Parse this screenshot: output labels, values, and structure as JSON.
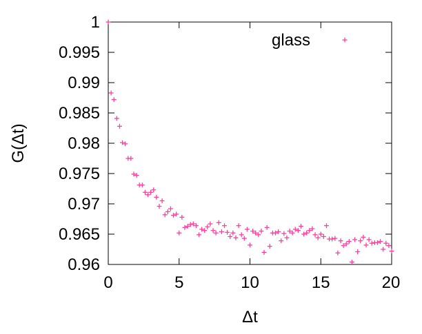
{
  "chart_data": {
    "type": "scatter",
    "title": "",
    "xlabel": "Δt",
    "ylabel": "G(Δt)",
    "xlim": [
      0,
      20
    ],
    "ylim": [
      0.96,
      1.0
    ],
    "x_ticks": [
      {
        "value": 0,
        "label": "0"
      },
      {
        "value": 5,
        "label": "5"
      },
      {
        "value": 10,
        "label": "10"
      },
      {
        "value": 15,
        "label": "15"
      },
      {
        "value": 20,
        "label": "20"
      }
    ],
    "y_ticks": [
      {
        "value": 0.96,
        "label": "0.96"
      },
      {
        "value": 0.965,
        "label": "0.965"
      },
      {
        "value": 0.97,
        "label": "0.97"
      },
      {
        "value": 0.975,
        "label": "0.975"
      },
      {
        "value": 0.98,
        "label": "0.98"
      },
      {
        "value": 0.985,
        "label": "0.985"
      },
      {
        "value": 0.99,
        "label": "0.99"
      },
      {
        "value": 0.995,
        "label": "0.995"
      },
      {
        "value": 1.0,
        "label": "1"
      }
    ],
    "grid": false,
    "legend": {
      "position": "top-right"
    },
    "series": [
      {
        "name": "glass",
        "color": "#ff3d9a",
        "marker": "plus",
        "x": [
          0.0,
          0.2,
          0.4,
          0.6,
          0.8,
          1.0,
          1.2,
          1.4,
          1.6,
          1.8,
          2.0,
          2.2,
          2.4,
          2.6,
          2.8,
          3.0,
          3.2,
          3.4,
          3.6,
          3.8,
          4.0,
          4.2,
          4.4,
          4.6,
          4.8,
          5.0,
          5.2,
          5.4,
          5.6,
          5.8,
          6.0,
          6.2,
          6.4,
          6.6,
          6.8,
          7.0,
          7.2,
          7.4,
          7.6,
          7.8,
          8.0,
          8.2,
          8.4,
          8.6,
          8.8,
          9.0,
          9.2,
          9.4,
          9.6,
          9.8,
          10.0,
          10.2,
          10.4,
          10.6,
          10.8,
          11.0,
          11.2,
          11.4,
          11.6,
          11.8,
          12.0,
          12.2,
          12.4,
          12.6,
          12.8,
          13.0,
          13.2,
          13.4,
          13.6,
          13.8,
          14.0,
          14.2,
          14.4,
          14.6,
          14.8,
          15.0,
          15.2,
          15.4,
          15.6,
          15.8,
          16.0,
          16.2,
          16.4,
          16.6,
          16.8,
          17.0,
          17.2,
          17.4,
          17.6,
          17.8,
          18.0,
          18.2,
          18.4,
          18.6,
          18.8,
          19.0,
          19.2,
          19.4,
          19.6,
          19.8,
          20.0
        ],
        "y": [
          1.0,
          0.9883,
          0.9872,
          0.9841,
          0.9828,
          0.9801,
          0.9799,
          0.9775,
          0.9775,
          0.9749,
          0.9747,
          0.9731,
          0.9731,
          0.9719,
          0.9715,
          0.9719,
          0.9723,
          0.9711,
          0.9696,
          0.9705,
          0.9682,
          0.9687,
          0.9692,
          0.9681,
          0.9683,
          0.9652,
          0.9678,
          0.9661,
          0.9663,
          0.9666,
          0.9667,
          0.9664,
          0.9649,
          0.9658,
          0.9656,
          0.9662,
          0.9667,
          0.9656,
          0.9652,
          0.9669,
          0.9654,
          0.9664,
          0.9653,
          0.9646,
          0.9652,
          0.9644,
          0.9664,
          0.9649,
          0.9643,
          0.9658,
          0.9632,
          0.9655,
          0.9652,
          0.9649,
          0.9655,
          0.962,
          0.9661,
          0.963,
          0.9652,
          0.9652,
          0.9654,
          0.9639,
          0.9651,
          0.9644,
          0.9655,
          0.9652,
          0.9658,
          0.9656,
          0.9663,
          0.965,
          0.9652,
          0.9656,
          0.9659,
          0.9649,
          0.9644,
          0.965,
          0.9646,
          0.9664,
          0.9642,
          0.9642,
          0.9643,
          0.9619,
          0.9639,
          0.9631,
          0.9634,
          0.9638,
          0.9604,
          0.9641,
          0.9621,
          0.9639,
          0.9645,
          0.9632,
          0.9641,
          0.9635,
          0.9636,
          0.9636,
          0.9638,
          0.9625,
          0.9635,
          0.9631,
          0.9622
        ]
      }
    ]
  }
}
